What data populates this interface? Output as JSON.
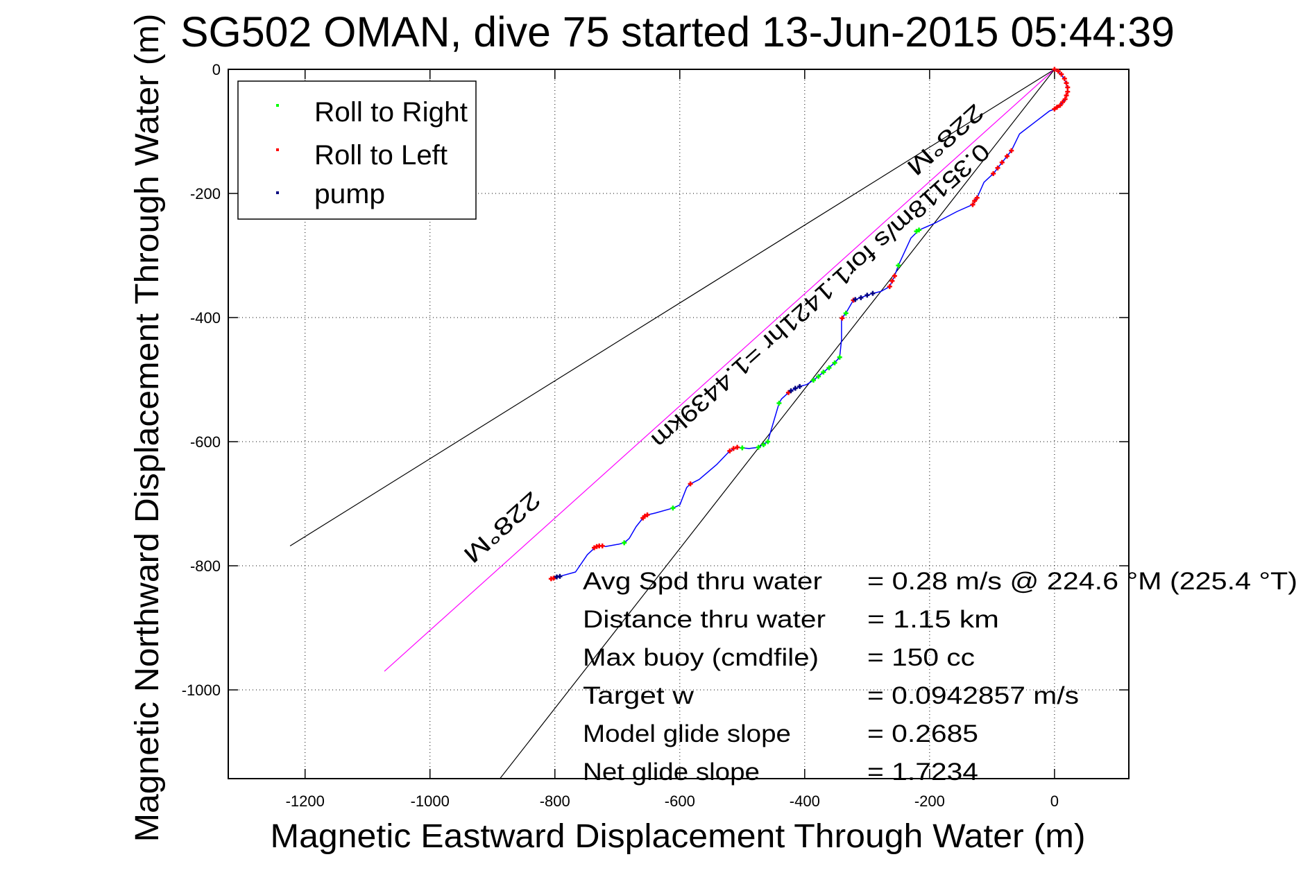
{
  "chart_data": {
    "type": "line",
    "title": "SG502 OMAN, dive 75 started 13-Jun-2015 05:44:39",
    "xlabel": "Magnetic Eastward Displacement Through Water (m)",
    "ylabel": "Magnetic Northward Displacement Through Water (m)",
    "xlim": [
      -1323,
      119
    ],
    "ylim": [
      -1143,
      0
    ],
    "xticks": [
      -1200,
      -1000,
      -800,
      -600,
      -400,
      -200,
      0
    ],
    "yticks": [
      0,
      -200,
      -400,
      -600,
      -800,
      -1000
    ],
    "xtick_labels": [
      "-1200",
      "-1000",
      "-800",
      "-600",
      "-400",
      "-200",
      "0"
    ],
    "ytick_labels": [
      "0",
      "-200",
      "-400",
      "-600",
      "-800",
      "-1000"
    ],
    "grid": true,
    "legend_placement": "top-left",
    "legend": [
      {
        "label": "Roll to Right",
        "color": "#00ff00"
      },
      {
        "label": "Roll to Left",
        "color": "#ff0000"
      },
      {
        "label": "pump",
        "color": "#000080"
      }
    ],
    "trajectory": {
      "name": "glider track",
      "color": "#0000ff",
      "x": [
        0,
        11,
        19,
        21,
        17,
        9,
        0,
        -8,
        -30,
        -56,
        -69,
        -84,
        -98,
        -113,
        -124,
        -131,
        -156,
        -192,
        -217,
        -230,
        -250,
        -256,
        -264,
        -278,
        -291,
        -319,
        -322,
        -333,
        -341,
        -341,
        -344,
        -352,
        -370,
        -386,
        -397,
        -408,
        -422,
        -426,
        -437,
        -441,
        -456,
        -459,
        -474,
        -489,
        -500,
        -508,
        -520,
        -541,
        -569,
        -583,
        -589,
        -600,
        -611,
        -639,
        -652,
        -659,
        -670,
        -681,
        -689,
        -697,
        -719,
        -724,
        -733,
        -748,
        -767,
        -792,
        -806
      ],
      "y": [
        0,
        -8,
        -22,
        -36,
        -48,
        -58,
        -64,
        -67,
        -84,
        -104,
        -131,
        -150,
        -168,
        -182,
        -207,
        -218,
        -229,
        -248,
        -259,
        -272,
        -316,
        -333,
        -350,
        -358,
        -361,
        -371,
        -372,
        -391,
        -402,
        -436,
        -464,
        -473,
        -488,
        -501,
        -508,
        -511,
        -518,
        -521,
        -531,
        -538,
        -589,
        -600,
        -609,
        -611,
        -610,
        -609,
        -615,
        -637,
        -661,
        -668,
        -674,
        -702,
        -707,
        -715,
        -718,
        -723,
        -737,
        -756,
        -763,
        -765,
        -769,
        -768,
        -768,
        -782,
        -810,
        -817,
        -821
      ]
    },
    "markers": {
      "roll_left": [
        [
          0,
          0
        ],
        [
          6,
          -3
        ],
        [
          11,
          -8
        ],
        [
          16,
          -15
        ],
        [
          19,
          -22
        ],
        [
          21,
          -29
        ],
        [
          21,
          -36
        ],
        [
          19,
          -42
        ],
        [
          17,
          -48
        ],
        [
          13,
          -53
        ],
        [
          9,
          -58
        ],
        [
          4,
          -61
        ],
        [
          0,
          -64
        ],
        [
          -69,
          -131
        ],
        [
          -76,
          -140
        ],
        [
          -84,
          -150
        ],
        [
          -91,
          -159
        ],
        [
          -98,
          -168
        ],
        [
          -124,
          -207
        ],
        [
          -128,
          -212
        ],
        [
          -131,
          -218
        ],
        [
          -256,
          -333
        ],
        [
          -260,
          -341
        ],
        [
          -264,
          -350
        ],
        [
          -322,
          -372
        ],
        [
          -340,
          -401
        ],
        [
          -426,
          -521
        ],
        [
          -508,
          -609
        ],
        [
          -514,
          -611
        ],
        [
          -520,
          -615
        ],
        [
          -583,
          -668
        ],
        [
          -652,
          -718
        ],
        [
          -656,
          -720
        ],
        [
          -659,
          -723
        ],
        [
          -724,
          -768
        ],
        [
          -729,
          -768
        ],
        [
          -733,
          -769
        ],
        [
          -737,
          -771
        ],
        [
          -802,
          -820
        ],
        [
          -806,
          -821
        ]
      ],
      "roll_right": [
        [
          -217,
          -259
        ],
        [
          -221,
          -261
        ],
        [
          -250,
          -316
        ],
        [
          -344,
          -464
        ],
        [
          -352,
          -473
        ],
        [
          -361,
          -481
        ],
        [
          -370,
          -488
        ],
        [
          -378,
          -495
        ],
        [
          -386,
          -501
        ],
        [
          -441,
          -538
        ],
        [
          -459,
          -600
        ],
        [
          -466,
          -605
        ],
        [
          -474,
          -609
        ],
        [
          -500,
          -610
        ],
        [
          -611,
          -707
        ],
        [
          -689,
          -763
        ],
        [
          -334,
          -393
        ]
      ],
      "pump": [
        [
          -291,
          -361
        ],
        [
          -300,
          -364
        ],
        [
          -310,
          -368
        ],
        [
          -319,
          -371
        ],
        [
          -408,
          -511
        ],
        [
          -415,
          -514
        ],
        [
          -422,
          -518
        ],
        [
          -792,
          -817
        ],
        [
          -797,
          -818
        ]
      ]
    },
    "reference_lines": [
      {
        "name": "heading-line-upper",
        "color": "#000000",
        "from": [
          0,
          0
        ],
        "to": [
          -1224,
          -768
        ]
      },
      {
        "name": "heading-line-228M",
        "color": "#ff00ff",
        "from": [
          0,
          0
        ],
        "to": [
          -1073,
          -970
        ]
      },
      {
        "name": "heading-line-lower",
        "color": "#000000",
        "from": [
          0,
          0
        ],
        "to": [
          -888,
          -1143
        ]
      }
    ],
    "annotations": {
      "heading_upper": "228°M",
      "heading_lower": "228°M",
      "current_text": "0.35118m/s for1.1421hr =1.4439km"
    },
    "stats": [
      {
        "label": "Avg Spd thru water",
        "value": "=  0.28 m/s @ 224.6 °M (225.4 °T)"
      },
      {
        "label": "Distance thru water",
        "value": "=  1.15 km"
      },
      {
        "label": "Max buoy (cmdfile)",
        "value": "= 150 cc"
      },
      {
        "label": "Target w",
        "value": "= 0.0942857 m/s"
      },
      {
        "label": "Model glide slope",
        "value": "= 0.2685"
      },
      {
        "label": "Net glide slope",
        "value": "= 1.7234"
      }
    ]
  }
}
